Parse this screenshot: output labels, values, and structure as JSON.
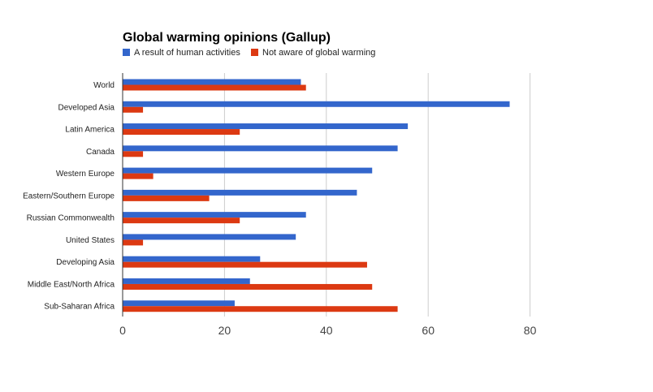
{
  "chart_data": {
    "type": "bar",
    "orientation": "horizontal",
    "title": "Global warming opinions (Gallup)",
    "xlabel": "",
    "ylabel": "",
    "xlim": [
      0,
      95
    ],
    "xticks": [
      0,
      20,
      40,
      60,
      80
    ],
    "grid": true,
    "legend_position": "top-left",
    "categories": [
      "World",
      "Developed Asia",
      "Latin America",
      "Canada",
      "Western Europe",
      "Eastern/Southern Europe",
      "Russian Commonwealth",
      "United States",
      "Developing Asia",
      "Middle East/North Africa",
      "Sub-Saharan Africa"
    ],
    "series": [
      {
        "name": "A result of human activities",
        "color": "#3366cc",
        "values": [
          35,
          76,
          56,
          54,
          49,
          46,
          36,
          34,
          27,
          25,
          22
        ]
      },
      {
        "name": "Not aware of global warming",
        "color": "#dc3912",
        "values": [
          36,
          4,
          23,
          4,
          6,
          17,
          23,
          4,
          48,
          49,
          54
        ]
      }
    ]
  }
}
